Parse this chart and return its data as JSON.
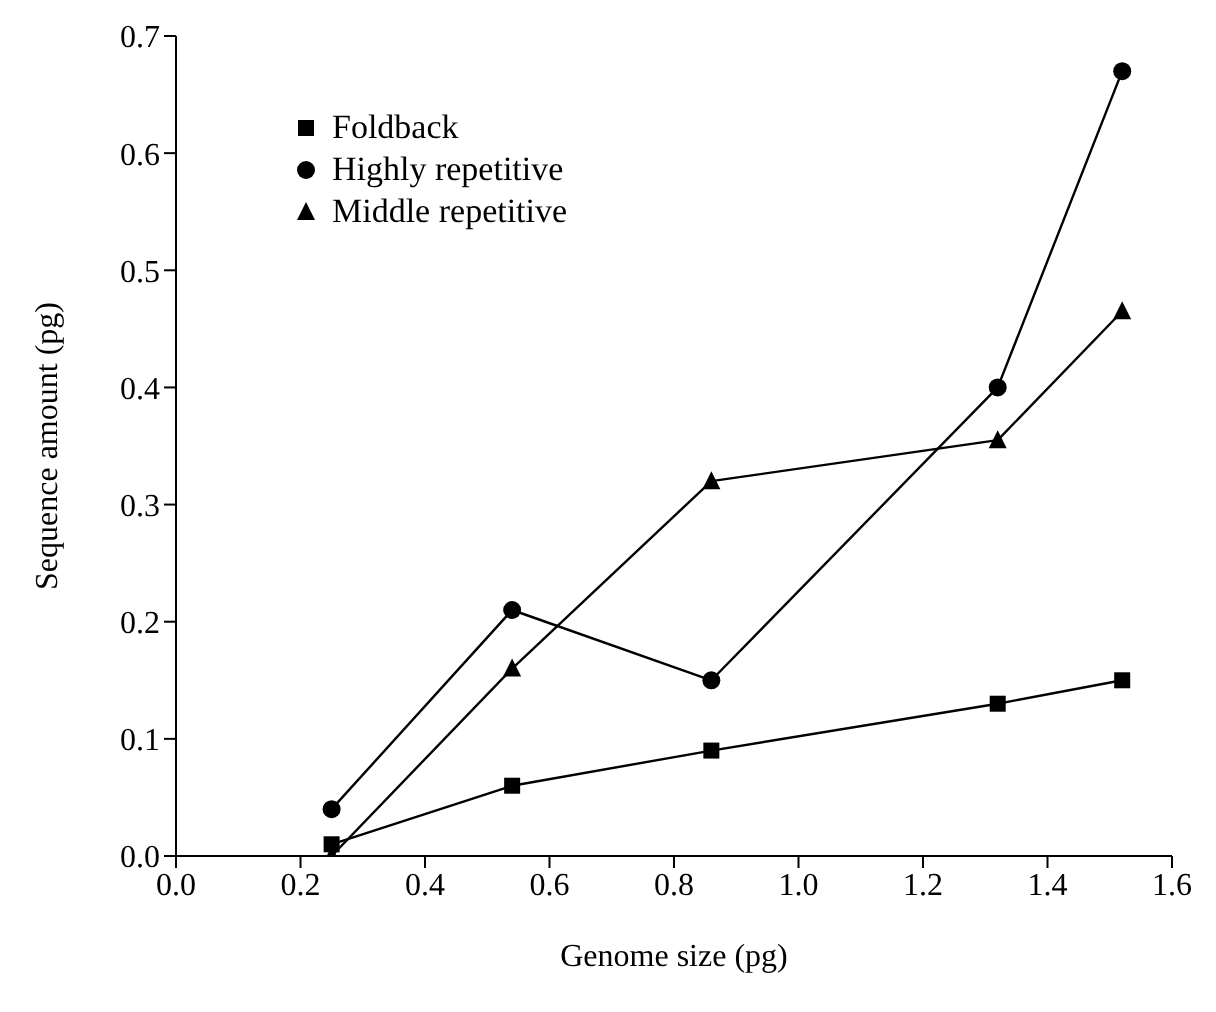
{
  "chart_data": {
    "type": "line",
    "xlabel": "Genome size (pg)",
    "ylabel": "Sequence amount (pg)",
    "x": [
      0.25,
      0.54,
      0.86,
      1.32,
      1.52
    ],
    "series": [
      {
        "name": "Foldback",
        "color": "#000000",
        "marker": "square",
        "values": [
          0.01,
          0.06,
          0.09,
          0.13,
          0.15
        ]
      },
      {
        "name": "Highly repetitive",
        "color": "#000000",
        "marker": "circle",
        "values": [
          0.04,
          0.21,
          0.15,
          0.4,
          0.67
        ]
      },
      {
        "name": "Middle repetitive",
        "color": "#000000",
        "marker": "triangle",
        "values": [
          0.0,
          0.16,
          0.32,
          0.355,
          0.465
        ]
      }
    ],
    "xlim": [
      0,
      1.6
    ],
    "xticks": [
      {
        "value": 0,
        "label": "0.0"
      },
      0.2,
      0.4,
      0.6,
      0.8,
      {
        "value": 1.0,
        "label": "1.0"
      },
      1.2,
      1.4,
      1.6
    ],
    "ylim": [
      0,
      0.7
    ],
    "yticks": [
      {
        "value": 0,
        "label": "0.0"
      },
      0.1,
      0.2,
      0.3,
      0.4,
      0.5,
      0.6,
      0.7
    ],
    "grid": false,
    "legend": "top left",
    "line_style": "solid"
  }
}
